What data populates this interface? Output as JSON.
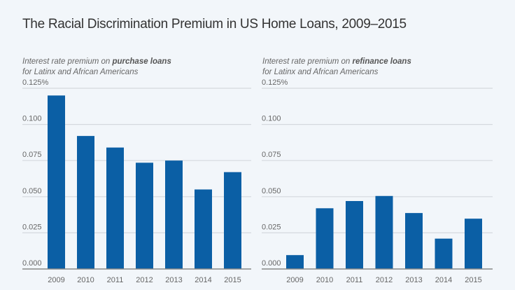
{
  "title": "The Racial Discrimination Premium in US Home Loans, 2009–2015",
  "colors": {
    "bar": "#0b5fa5",
    "grid": "#d5d9de",
    "axis": "#888888"
  },
  "chart_data": [
    {
      "type": "bar",
      "subtitle_prefix": "Interest rate premium on ",
      "subtitle_bold": "purchase loans",
      "subtitle_line2": "for Latinx and African Americans",
      "categories": [
        "2009",
        "2010",
        "2011",
        "2012",
        "2013",
        "2014",
        "2015"
      ],
      "values": [
        0.12,
        0.092,
        0.084,
        0.0735,
        0.075,
        0.055,
        0.067
      ],
      "yticks": [
        0,
        0.025,
        0.05,
        0.075,
        0.1,
        0.125
      ],
      "ytick_labels": [
        "0.000",
        "0.025",
        "0.050",
        "0.075",
        "0.100",
        "0.125%"
      ],
      "ylim": [
        0,
        0.125
      ],
      "grid": true,
      "xlabel": "",
      "ylabel": ""
    },
    {
      "type": "bar",
      "subtitle_prefix": "Interest rate premium on ",
      "subtitle_bold": "refinance loans",
      "subtitle_line2": "for Latinx and African Americans",
      "categories": [
        "2009",
        "2010",
        "2011",
        "2012",
        "2013",
        "2014",
        "2015"
      ],
      "values": [
        0.0096,
        0.042,
        0.047,
        0.0505,
        0.0387,
        0.021,
        0.0348
      ],
      "yticks": [
        0,
        0.025,
        0.05,
        0.075,
        0.1,
        0.125
      ],
      "ytick_labels": [
        "0.000",
        "0.025",
        "0.050",
        "0.075",
        "0.100",
        "0.125%"
      ],
      "ylim": [
        0,
        0.125
      ],
      "grid": true,
      "xlabel": "",
      "ylabel": ""
    }
  ]
}
